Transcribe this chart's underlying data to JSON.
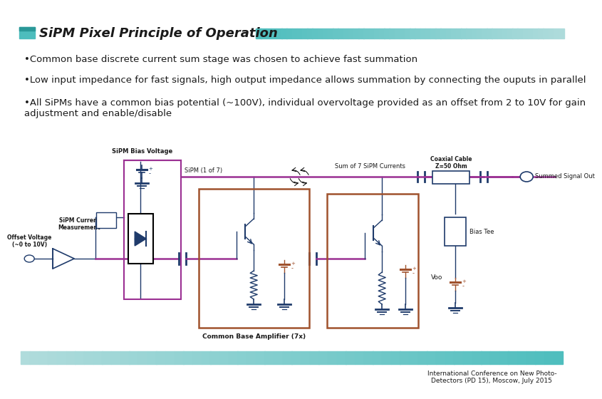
{
  "title": "SiPM Pixel Principle of Operation",
  "background_color": "#FFFFFF",
  "title_color": "#1a1a1a",
  "title_fontsize": 13,
  "bullets": [
    "•Common base discrete current sum stage was chosen to achieve fast summation",
    "•Low input impedance for fast signals, high output impedance allows summation by connecting the ouputs in parallel",
    "•All SiPMs have a common bias potential (~100V), individual overvoltage provided as an offset from 2 to 10V for gain\nadjustment and enable/disable"
  ],
  "bullet_fontsize": 9.5,
  "bullet_color": "#1a1a1a",
  "circuit_labels": {
    "sipm_bias": "SiPM Bias Voltage",
    "sipm_label": "SiPM (1 of 7)",
    "sipm_current": "SiPM Current\nMeasurement",
    "offset_voltage": "Offset Voltage\n(~0 to 10V)",
    "sum_currents": "Sum of 7 SiPM Currents",
    "coaxial": "Coaxial Cable\nZ=50 Ohm",
    "summed_out": "Summed Signal Out",
    "common_base": "Common Base Amplifier (7x)",
    "bias_tee": "Bias Tee",
    "voo": "Voo"
  },
  "footer_text": "International Conference on New Photo-\nDetectors (PD 15), Moscow, July 2015",
  "footer_text_color": "#1a1a1a",
  "footer_text_fontsize": 6.5,
  "line_color": "#1F3B6B",
  "purple_color": "#9B3093",
  "orange_color": "#A0522D",
  "signal_line_color": "#9B3093"
}
